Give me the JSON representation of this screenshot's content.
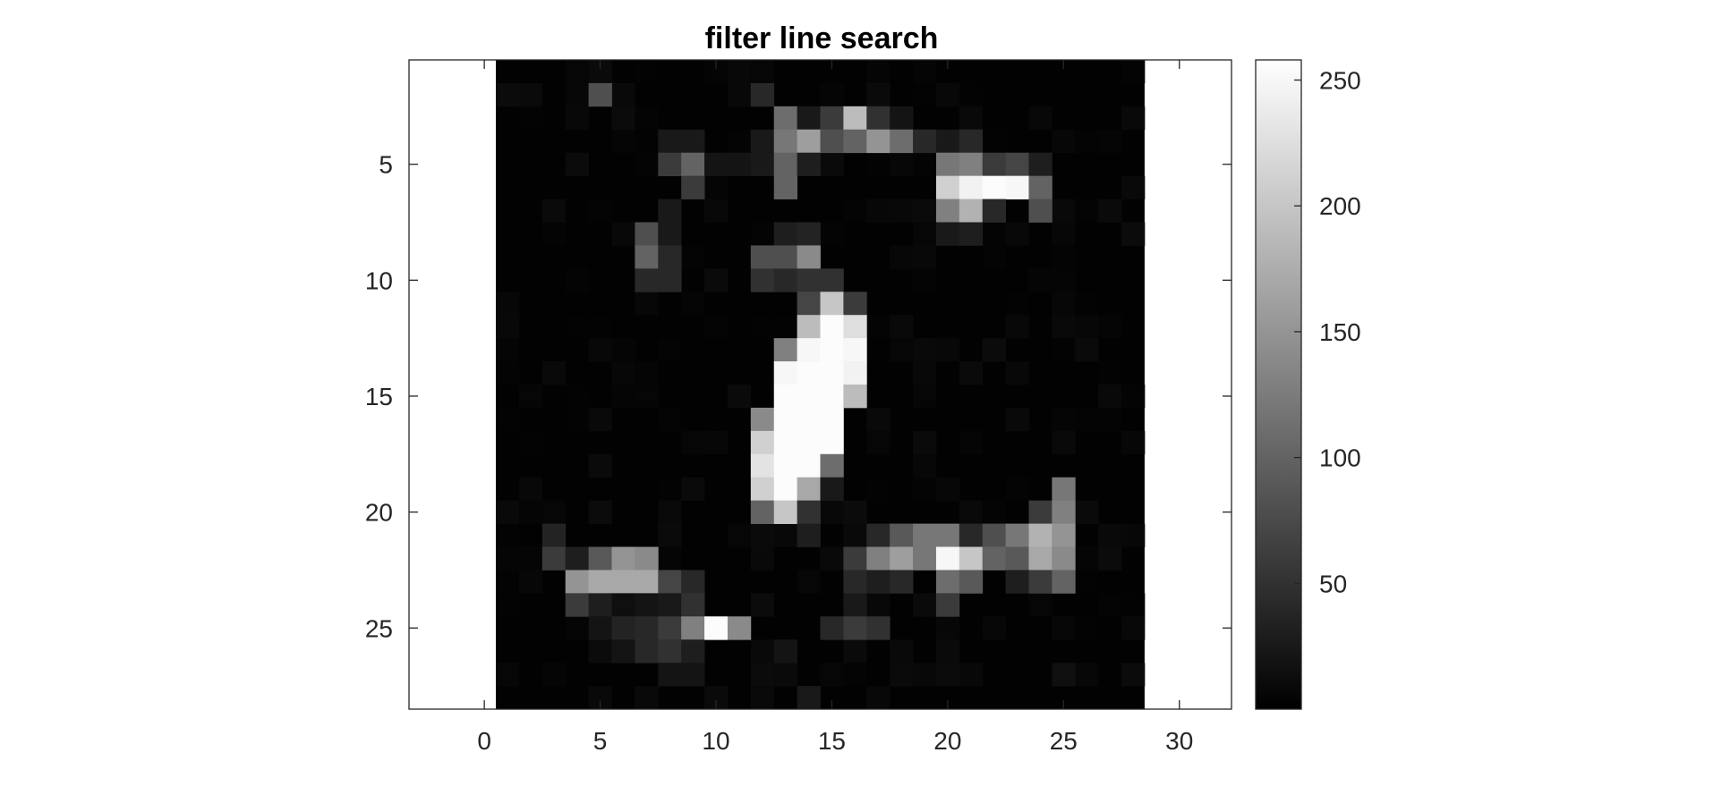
{
  "chart_data": {
    "type": "heatmap",
    "title": "filter line search",
    "xlabel": "",
    "ylabel": "",
    "xlim": [
      -3.25,
      32.25
    ],
    "ylim": [
      0.5,
      28.5
    ],
    "x_ticks": [
      0,
      5,
      10,
      15,
      20,
      25,
      30
    ],
    "y_ticks": [
      5,
      10,
      15,
      20,
      25
    ],
    "colormap": "gray",
    "clim": [
      0,
      258
    ],
    "colorbar_ticks": [
      50,
      100,
      150,
      200,
      250
    ],
    "grid": false,
    "rows": 28,
    "cols": 28,
    "cells": [
      [
        2,
        5,
        0,
        80
      ],
      [
        2,
        12,
        0,
        40
      ],
      [
        3,
        13,
        0,
        110
      ],
      [
        3,
        14,
        0,
        25
      ],
      [
        3,
        15,
        0,
        60
      ],
      [
        3,
        16,
        0,
        190
      ],
      [
        3,
        17,
        0,
        50
      ],
      [
        3,
        18,
        0,
        20
      ],
      [
        4,
        8,
        0,
        25
      ],
      [
        4,
        9,
        0,
        25
      ],
      [
        4,
        12,
        0,
        25
      ],
      [
        4,
        13,
        0,
        120
      ],
      [
        4,
        14,
        0,
        160
      ],
      [
        4,
        15,
        0,
        80
      ],
      [
        4,
        16,
        0,
        100
      ],
      [
        4,
        17,
        0,
        150
      ],
      [
        4,
        18,
        0,
        110
      ],
      [
        4,
        19,
        0,
        40
      ],
      [
        4,
        20,
        0,
        25
      ],
      [
        4,
        21,
        0,
        40
      ],
      [
        5,
        8,
        0,
        60
      ],
      [
        5,
        9,
        0,
        100
      ],
      [
        5,
        10,
        0,
        20
      ],
      [
        5,
        11,
        0,
        20
      ],
      [
        5,
        12,
        0,
        25
      ],
      [
        5,
        13,
        0,
        100
      ],
      [
        5,
        14,
        0,
        30
      ],
      [
        5,
        20,
        0,
        120
      ],
      [
        5,
        21,
        0,
        130
      ],
      [
        5,
        22,
        0,
        60
      ],
      [
        5,
        23,
        0,
        70
      ],
      [
        5,
        24,
        0,
        30
      ],
      [
        6,
        9,
        0,
        60
      ],
      [
        6,
        13,
        0,
        100
      ],
      [
        6,
        20,
        0,
        210
      ],
      [
        6,
        21,
        0,
        245
      ],
      [
        6,
        22,
        0,
        255
      ],
      [
        6,
        23,
        0,
        250
      ],
      [
        6,
        24,
        0,
        100
      ],
      [
        7,
        8,
        0,
        25
      ],
      [
        7,
        20,
        0,
        130
      ],
      [
        7,
        21,
        0,
        180
      ],
      [
        7,
        22,
        0,
        40
      ],
      [
        7,
        24,
        0,
        80
      ],
      [
        8,
        7,
        0,
        80
      ],
      [
        8,
        8,
        0,
        25
      ],
      [
        8,
        13,
        0,
        30
      ],
      [
        8,
        14,
        0,
        35
      ],
      [
        8,
        20,
        0,
        25
      ],
      [
        8,
        21,
        0,
        30
      ],
      [
        9,
        7,
        0,
        100
      ],
      [
        9,
        8,
        0,
        40
      ],
      [
        9,
        12,
        0,
        80
      ],
      [
        9,
        13,
        0,
        80
      ],
      [
        9,
        14,
        0,
        140
      ],
      [
        10,
        7,
        0,
        40
      ],
      [
        10,
        8,
        0,
        40
      ],
      [
        10,
        12,
        0,
        50
      ],
      [
        10,
        13,
        0,
        40
      ],
      [
        10,
        14,
        0,
        50
      ],
      [
        10,
        15,
        0,
        50
      ],
      [
        11,
        14,
        0,
        70
      ],
      [
        11,
        15,
        0,
        200
      ],
      [
        11,
        16,
        0,
        60
      ],
      [
        12,
        14,
        0,
        190
      ],
      [
        12,
        15,
        0,
        255
      ],
      [
        12,
        16,
        0,
        225
      ],
      [
        13,
        13,
        0,
        130
      ],
      [
        13,
        14,
        0,
        250
      ],
      [
        13,
        15,
        0,
        255
      ],
      [
        13,
        16,
        0,
        250
      ],
      [
        14,
        13,
        0,
        250
      ],
      [
        14,
        14,
        0,
        255
      ],
      [
        14,
        15,
        0,
        255
      ],
      [
        14,
        16,
        0,
        245
      ],
      [
        15,
        13,
        0,
        255
      ],
      [
        15,
        14,
        0,
        255
      ],
      [
        15,
        15,
        0,
        255
      ],
      [
        15,
        16,
        0,
        190
      ],
      [
        16,
        12,
        0,
        140
      ],
      [
        16,
        13,
        0,
        255
      ],
      [
        16,
        14,
        0,
        255
      ],
      [
        16,
        15,
        0,
        255
      ],
      [
        17,
        12,
        0,
        210
      ],
      [
        17,
        13,
        0,
        255
      ],
      [
        17,
        14,
        0,
        255
      ],
      [
        17,
        15,
        0,
        255
      ],
      [
        18,
        12,
        0,
        230
      ],
      [
        18,
        13,
        0,
        255
      ],
      [
        18,
        14,
        0,
        255
      ],
      [
        18,
        15,
        0,
        110
      ],
      [
        19,
        12,
        0,
        210
      ],
      [
        19,
        13,
        0,
        255
      ],
      [
        19,
        14,
        0,
        170
      ],
      [
        19,
        15,
        0,
        25
      ],
      [
        19,
        25,
        0,
        120
      ],
      [
        20,
        12,
        0,
        100
      ],
      [
        20,
        13,
        0,
        200
      ],
      [
        20,
        14,
        0,
        50
      ],
      [
        20,
        24,
        0,
        60
      ],
      [
        20,
        25,
        0,
        130
      ],
      [
        21,
        3,
        0,
        35
      ],
      [
        21,
        14,
        0,
        30
      ],
      [
        21,
        17,
        0,
        40
      ],
      [
        21,
        18,
        0,
        90
      ],
      [
        21,
        19,
        0,
        120
      ],
      [
        21,
        20,
        0,
        120
      ],
      [
        21,
        21,
        0,
        40
      ],
      [
        21,
        22,
        0,
        80
      ],
      [
        21,
        23,
        0,
        120
      ],
      [
        21,
        24,
        0,
        180
      ],
      [
        21,
        25,
        0,
        150
      ],
      [
        22,
        3,
        0,
        60
      ],
      [
        22,
        4,
        0,
        30
      ],
      [
        22,
        5,
        0,
        90
      ],
      [
        22,
        6,
        0,
        150
      ],
      [
        22,
        7,
        0,
        140
      ],
      [
        22,
        16,
        0,
        60
      ],
      [
        22,
        17,
        0,
        130
      ],
      [
        22,
        18,
        0,
        160
      ],
      [
        22,
        19,
        0,
        120
      ],
      [
        22,
        20,
        0,
        250
      ],
      [
        22,
        21,
        0,
        200
      ],
      [
        22,
        22,
        0,
        100
      ],
      [
        22,
        23,
        0,
        90
      ],
      [
        22,
        24,
        0,
        170
      ],
      [
        22,
        25,
        0,
        140
      ],
      [
        23,
        4,
        0,
        150
      ],
      [
        23,
        5,
        0,
        170
      ],
      [
        23,
        6,
        0,
        170
      ],
      [
        23,
        7,
        0,
        170
      ],
      [
        23,
        8,
        0,
        70
      ],
      [
        23,
        9,
        0,
        40
      ],
      [
        23,
        16,
        0,
        40
      ],
      [
        23,
        17,
        0,
        30
      ],
      [
        23,
        18,
        0,
        40
      ],
      [
        23,
        20,
        0,
        110
      ],
      [
        23,
        21,
        0,
        90
      ],
      [
        23,
        23,
        0,
        30
      ],
      [
        23,
        24,
        0,
        60
      ],
      [
        23,
        25,
        0,
        100
      ],
      [
        24,
        4,
        0,
        60
      ],
      [
        24,
        5,
        0,
        30
      ],
      [
        24,
        6,
        0,
        15
      ],
      [
        24,
        7,
        0,
        20
      ],
      [
        24,
        8,
        0,
        25
      ],
      [
        24,
        9,
        0,
        50
      ],
      [
        24,
        16,
        0,
        25
      ],
      [
        24,
        20,
        0,
        60
      ],
      [
        25,
        5,
        0,
        20
      ],
      [
        25,
        6,
        0,
        35
      ],
      [
        25,
        7,
        0,
        40
      ],
      [
        25,
        8,
        0,
        60
      ],
      [
        25,
        9,
        0,
        130
      ],
      [
        25,
        10,
        0,
        255
      ],
      [
        25,
        11,
        0,
        140
      ],
      [
        25,
        15,
        0,
        40
      ],
      [
        25,
        16,
        0,
        60
      ],
      [
        25,
        17,
        0,
        50
      ],
      [
        26,
        6,
        0,
        20
      ],
      [
        26,
        7,
        0,
        40
      ],
      [
        26,
        8,
        0,
        50
      ],
      [
        26,
        9,
        0,
        30
      ],
      [
        26,
        13,
        0,
        20
      ],
      [
        27,
        8,
        0,
        20
      ],
      [
        27,
        9,
        0,
        20
      ],
      [
        27,
        25,
        0,
        15
      ],
      [
        28,
        14,
        0,
        25
      ]
    ]
  }
}
